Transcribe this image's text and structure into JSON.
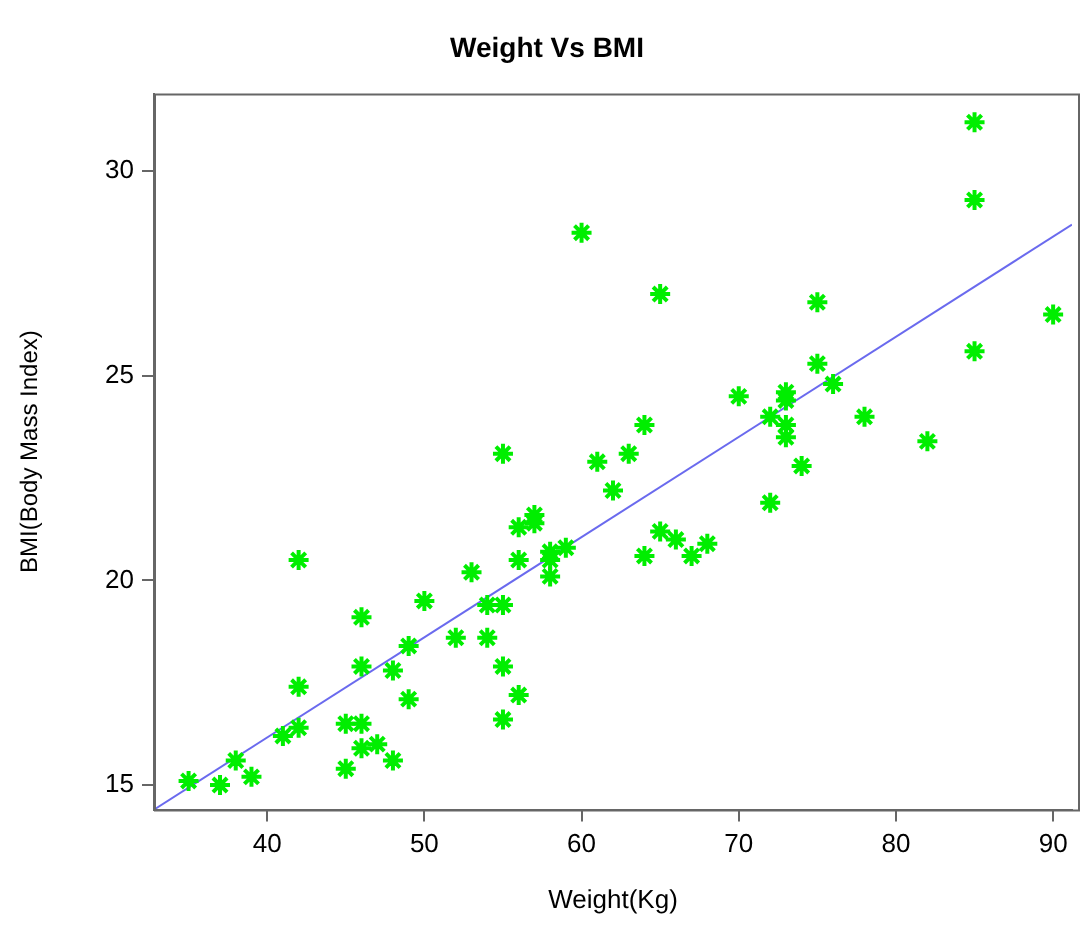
{
  "chart_data": {
    "type": "scatter",
    "title": "Weight Vs BMI",
    "xlabel": "Weight(Kg)",
    "ylabel": "BMI(Body Mass Index)",
    "xlim": [
      32.8,
      91.2
    ],
    "ylim": [
      14.4,
      31.9
    ],
    "xticks": [
      40,
      50,
      60,
      70,
      80,
      90
    ],
    "yticks": [
      15,
      20,
      25,
      30
    ],
    "grid": false,
    "legend": false,
    "marker": "cross",
    "series": [
      {
        "color": "#00ee00",
        "x": [
          35,
          37,
          38,
          39,
          41,
          42,
          42,
          42,
          45,
          45,
          46,
          46,
          46,
          46,
          47,
          48,
          48,
          49,
          49,
          50,
          52,
          53,
          54,
          54,
          55,
          55,
          55,
          55,
          56,
          56,
          56,
          57,
          57,
          58,
          58,
          58,
          59,
          60,
          61,
          62,
          63,
          64,
          64,
          65,
          65,
          66,
          67,
          68,
          70,
          72,
          72,
          73,
          73,
          73,
          73,
          74,
          75,
          75,
          76,
          78,
          82,
          85,
          85,
          85,
          90
        ],
        "values": [
          15.1,
          15.0,
          15.6,
          15.2,
          16.2,
          16.4,
          17.4,
          20.5,
          16.5,
          15.4,
          16.5,
          15.9,
          17.9,
          19.1,
          16.0,
          15.6,
          17.8,
          17.1,
          18.4,
          19.5,
          18.6,
          20.2,
          19.4,
          18.6,
          19.4,
          17.9,
          16.6,
          23.1,
          17.2,
          20.5,
          21.3,
          21.6,
          21.4,
          20.7,
          20.5,
          20.1,
          20.8,
          28.5,
          22.9,
          22.2,
          23.1,
          23.8,
          20.6,
          27.0,
          21.2,
          21.0,
          20.6,
          20.9,
          24.5,
          24.0,
          21.9,
          24.6,
          24.4,
          23.8,
          23.5,
          22.8,
          26.8,
          25.3,
          24.8,
          24.0,
          23.4,
          31.2,
          29.3,
          25.6,
          26.5
        ]
      },
      {
        "type": "line",
        "marker": "none",
        "color": "#6a6aee",
        "x": [
          32.8,
          91.2
        ],
        "values": [
          14.4,
          28.7
        ]
      }
    ]
  }
}
